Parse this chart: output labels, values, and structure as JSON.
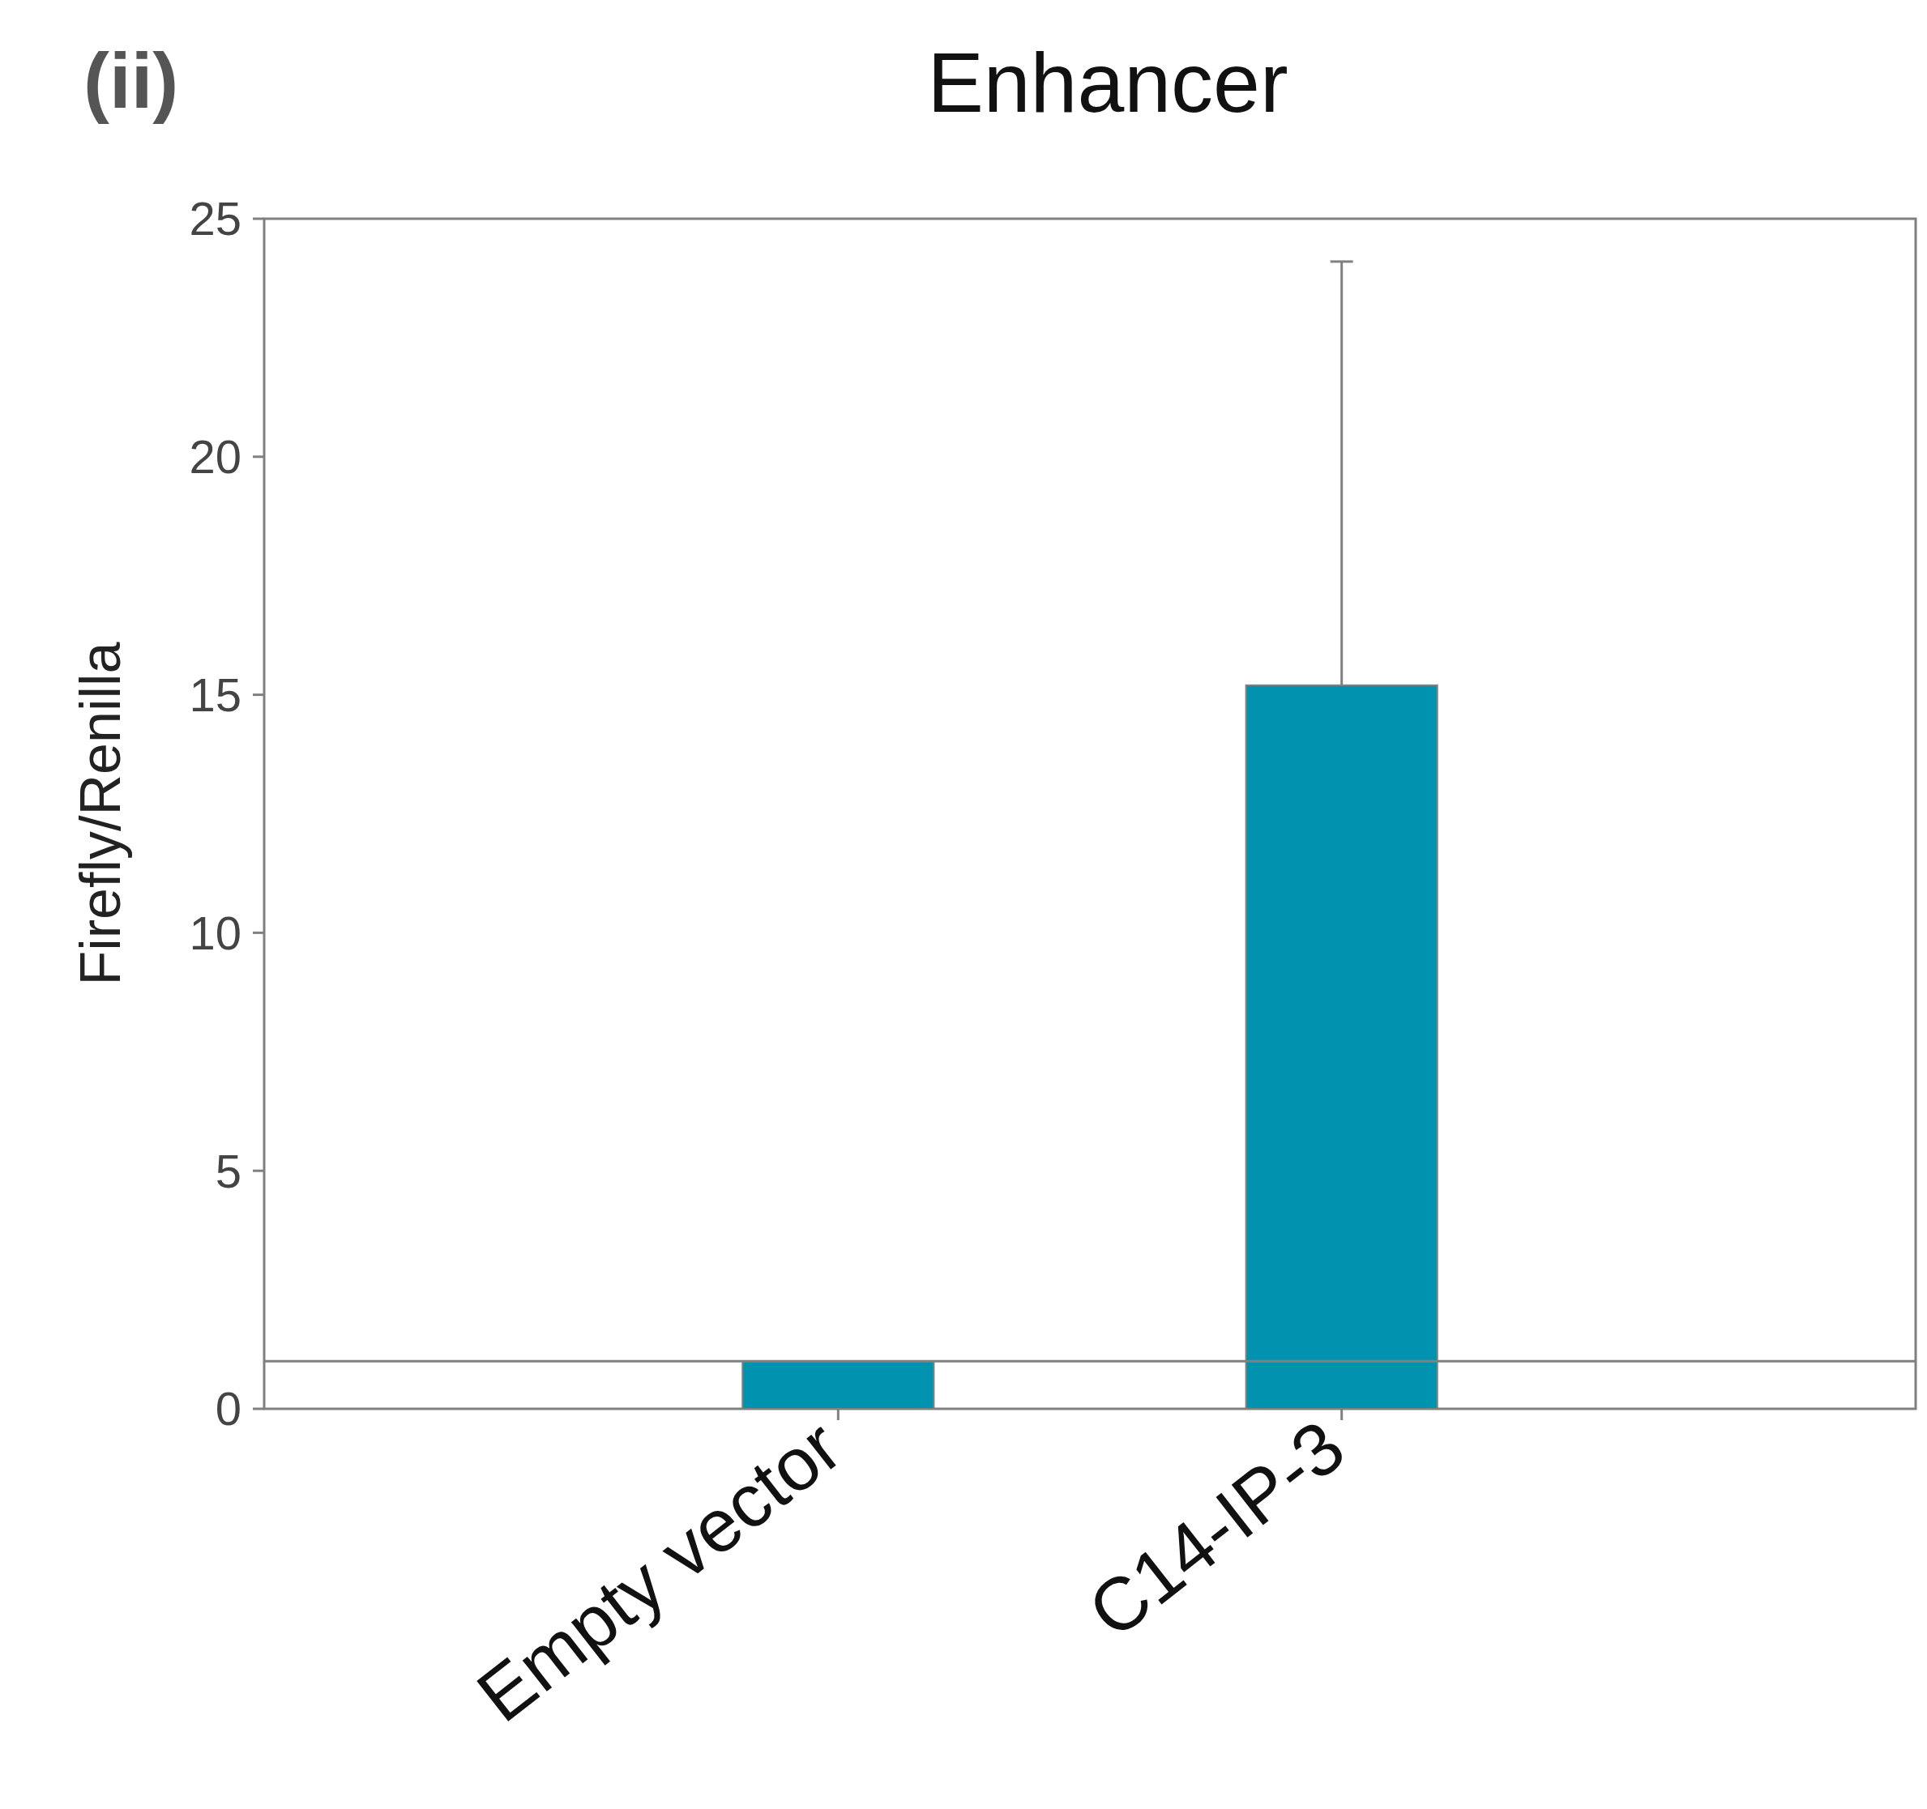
{
  "chart_data": {
    "type": "bar",
    "title": "Enhancer",
    "ylabel": "Firefly/Renilla",
    "annotations": [
      "(ii)"
    ],
    "categories": [
      "Empty vector",
      "C14-IP-3"
    ],
    "values": [
      1.0,
      15.2
    ],
    "errors": [
      null,
      8.9
    ],
    "color": "#0092ae",
    "ylim": [
      0,
      25
    ],
    "yticks": [
      0,
      5,
      10,
      15,
      20,
      25
    ],
    "grid": false,
    "ref_lines": [
      {
        "axis": "y",
        "value": 1,
        "color": "#808080"
      }
    ]
  }
}
